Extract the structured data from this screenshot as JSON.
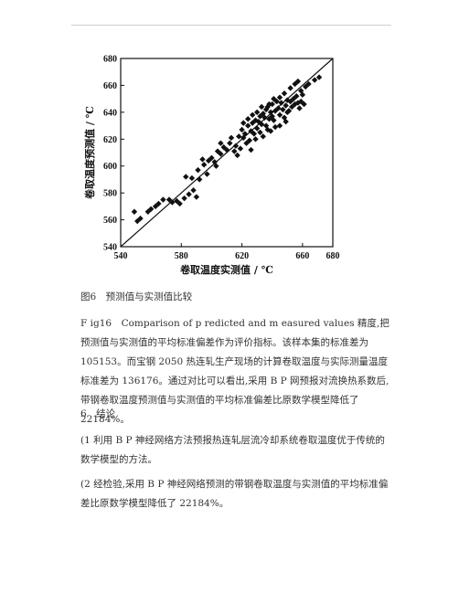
{
  "figure": {
    "caption_cn": "图6　预测值与实测值比较",
    "caption_en": "F ig16　Comparison of p redicted and m easured values"
  },
  "chart_data": {
    "type": "scatter",
    "title": "",
    "xlabel": "卷取温度实测值 / ℃",
    "ylabel": "卷取温度预测值 / ℃",
    "xlim": [
      540,
      680
    ],
    "ylim": [
      540,
      680
    ],
    "xticks": [
      540,
      580,
      620,
      660,
      680
    ],
    "yticks": [
      540,
      560,
      580,
      600,
      620,
      640,
      660,
      680
    ],
    "grid": false,
    "reference_line": "y = x",
    "points": [
      [
        549,
        566
      ],
      [
        551,
        559
      ],
      [
        553,
        561
      ],
      [
        558,
        566
      ],
      [
        560,
        568
      ],
      [
        563,
        570
      ],
      [
        565,
        572
      ],
      [
        568,
        575
      ],
      [
        572,
        575
      ],
      [
        574,
        573
      ],
      [
        577,
        574
      ],
      [
        579,
        572
      ],
      [
        582,
        576
      ],
      [
        585,
        579
      ],
      [
        588,
        582
      ],
      [
        590,
        577
      ],
      [
        583,
        592
      ],
      [
        587,
        591
      ],
      [
        592,
        590
      ],
      [
        595,
        601
      ],
      [
        597,
        594
      ],
      [
        600,
        606
      ],
      [
        602,
        603
      ],
      [
        604,
        611
      ],
      [
        606,
        609
      ],
      [
        608,
        614
      ],
      [
        610,
        612
      ],
      [
        612,
        617
      ],
      [
        606,
        617
      ],
      [
        603,
        600
      ],
      [
        598,
        604
      ],
      [
        594,
        605
      ],
      [
        591,
        597
      ],
      [
        616,
        615
      ],
      [
        618,
        622
      ],
      [
        620,
        627
      ],
      [
        621,
        621
      ],
      [
        622,
        624
      ],
      [
        624,
        630
      ],
      [
        625,
        619
      ],
      [
        626,
        626
      ],
      [
        627,
        632
      ],
      [
        628,
        624
      ],
      [
        629,
        634
      ],
      [
        630,
        628
      ],
      [
        631,
        633
      ],
      [
        632,
        637
      ],
      [
        633,
        631
      ],
      [
        634,
        639
      ],
      [
        635,
        636
      ],
      [
        636,
        630
      ],
      [
        636,
        642
      ],
      [
        637,
        644
      ],
      [
        638,
        635
      ],
      [
        639,
        640
      ],
      [
        640,
        646
      ],
      [
        640,
        637
      ],
      [
        641,
        634
      ],
      [
        642,
        641
      ],
      [
        643,
        648
      ],
      [
        644,
        643
      ],
      [
        645,
        638
      ],
      [
        645,
        651
      ],
      [
        646,
        647
      ],
      [
        647,
        642
      ],
      [
        648,
        654
      ],
      [
        649,
        645
      ],
      [
        650,
        649
      ],
      [
        651,
        641
      ],
      [
        652,
        648
      ],
      [
        653,
        644
      ],
      [
        654,
        650
      ],
      [
        655,
        646
      ],
      [
        656,
        652
      ],
      [
        657,
        647
      ],
      [
        658,
        643
      ],
      [
        659,
        648
      ],
      [
        660,
        653
      ],
      [
        661,
        646
      ],
      [
        652,
        658
      ],
      [
        655,
        661
      ],
      [
        657,
        663
      ],
      [
        659,
        656
      ],
      [
        662,
        659
      ],
      [
        664,
        661
      ],
      [
        668,
        664
      ],
      [
        671,
        666
      ],
      [
        613,
        621
      ],
      [
        615,
        611
      ],
      [
        617,
        608
      ],
      [
        619,
        613
      ],
      [
        623,
        617
      ],
      [
        626,
        612
      ],
      [
        629,
        620
      ],
      [
        632,
        625
      ],
      [
        634,
        622
      ],
      [
        637,
        627
      ],
      [
        638,
        646
      ],
      [
        641,
        650
      ],
      [
        633,
        644
      ],
      [
        630,
        640
      ],
      [
        627,
        638
      ],
      [
        624,
        635
      ],
      [
        621,
        632
      ],
      [
        645,
        630
      ],
      [
        648,
        636
      ],
      [
        650,
        640
      ],
      [
        649,
        633
      ],
      [
        642,
        629
      ],
      [
        639,
        626
      ]
    ]
  },
  "body": {
    "paragraph1": "F ig16　Comparison of p redicted and m easured values 精度,把预测值与实测值的平均标准偏差作为评价指标。该样本集的标准差为 105153。而宝钢 2050 热连轧生产现场的计算卷取温度与实际测量温度标准差为 136176。通过对比可以看出,采用 B P 网预报对流换热系数后,带钢卷取温度预测值与实测值的平均标准偏差比原数学模型降低了 22184%。",
    "section_heading": "6　结论",
    "conclusion1": "(1 利用 B P 神经网络方法预报热连轧层流冷却系统卷取温度优于传统的数学模型的方法。",
    "conclusion2": "(2 经检验,采用 B P 神经网络预测的带钢卷取温度与实测值的平均标准偏差比原数学模型降低了 22184%。"
  }
}
